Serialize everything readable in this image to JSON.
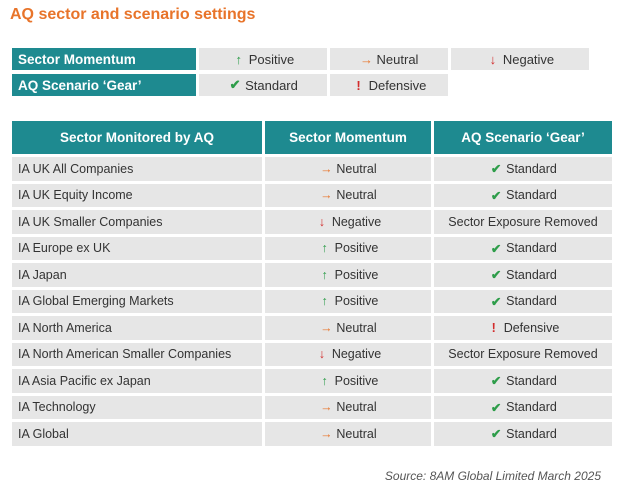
{
  "title": "AQ sector and scenario settings",
  "colors": {
    "accent": "#e8742a",
    "header_bg": "#1e8a90",
    "cell_bg": "#e6e6e6",
    "positive": "#2e9d4a",
    "neutral": "#e8742a",
    "negative": "#d22b2b"
  },
  "icons": {
    "positive": "↑",
    "neutral": "→",
    "negative": "↓",
    "standard": "✔",
    "defensive": "!"
  },
  "legend": {
    "momentum_label": "Sector Momentum",
    "momentum_values": [
      "Positive",
      "Neutral",
      "Negative"
    ],
    "gear_label": "AQ Scenario ‘Gear’",
    "gear_values": [
      "Standard",
      "Defensive"
    ]
  },
  "table": {
    "headers": [
      "Sector Monitored by AQ",
      "Sector Momentum",
      "AQ Scenario ‘Gear’"
    ],
    "rows": [
      {
        "sector": "IA UK All Companies",
        "momentum": "Neutral",
        "momentum_icon": "neutral",
        "gear": "Standard",
        "gear_icon": "standard"
      },
      {
        "sector": "IA UK Equity Income",
        "momentum": "Neutral",
        "momentum_icon": "neutral",
        "gear": "Standard",
        "gear_icon": "standard"
      },
      {
        "sector": "IA UK Smaller Companies",
        "momentum": "Negative",
        "momentum_icon": "negative",
        "gear": "Sector Exposure Removed",
        "gear_icon": ""
      },
      {
        "sector": "IA Europe ex UK",
        "momentum": "Positive",
        "momentum_icon": "positive",
        "gear": "Standard",
        "gear_icon": "standard"
      },
      {
        "sector": "IA Japan",
        "momentum": "Positive",
        "momentum_icon": "positive",
        "gear": "Standard",
        "gear_icon": "standard"
      },
      {
        "sector": "IA Global Emerging Markets",
        "momentum": "Positive",
        "momentum_icon": "positive",
        "gear": "Standard",
        "gear_icon": "standard"
      },
      {
        "sector": "IA North America",
        "momentum": "Neutral",
        "momentum_icon": "neutral",
        "gear": "Defensive",
        "gear_icon": "defensive"
      },
      {
        "sector": "IA North American Smaller Companies",
        "momentum": "Negative",
        "momentum_icon": "negative",
        "gear": "Sector Exposure Removed",
        "gear_icon": ""
      },
      {
        "sector": "IA Asia Pacific ex Japan",
        "momentum": "Positive",
        "momentum_icon": "positive",
        "gear": "Standard",
        "gear_icon": "standard"
      },
      {
        "sector": "IA Technology",
        "momentum": "Neutral",
        "momentum_icon": "neutral",
        "gear": "Standard",
        "gear_icon": "standard"
      },
      {
        "sector": "IA Global",
        "momentum": "Neutral",
        "momentum_icon": "neutral",
        "gear": "Standard",
        "gear_icon": "standard"
      }
    ]
  },
  "source": "Source: 8AM Global Limited March 2025"
}
